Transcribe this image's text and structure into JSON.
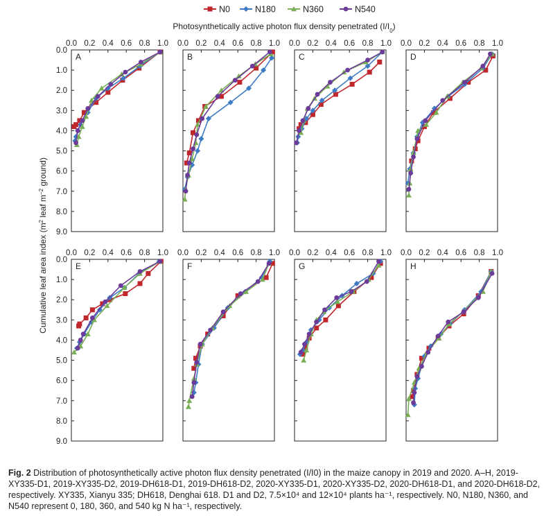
{
  "series_colors": {
    "N0": "#c0272d",
    "N180": "#3d7cc4",
    "N360": "#79ae55",
    "N540": "#6c3b9a"
  },
  "chart_data": {
    "type": "line",
    "xlabel": "Photosynthetically active photon flux density penetrated (I/I",
    "xlabel_sub": "0",
    "xlabel_end": ")",
    "ylabel_part1": "Cumulative leaf area index (m",
    "ylabel_sup1": "2",
    "ylabel_part2": " leaf m",
    "ylabel_sup2": "−2",
    "ylabel_part3": " ground)",
    "xlim": [
      0,
      1.0
    ],
    "ylim": [
      0,
      9.0
    ],
    "y_inverted": true,
    "x_ticks": [
      "0.0",
      "0.2",
      "0.4",
      "0.6",
      "0.8",
      "1.0"
    ],
    "y_ticks": [
      "0.0",
      "1.0",
      "2.0",
      "3.0",
      "4.0",
      "5.0",
      "6.0",
      "7.0",
      "8.0",
      "9.0"
    ],
    "legend": [
      "N0",
      "N180",
      "N360",
      "N540"
    ],
    "legend_position": "top-center",
    "panels": [
      {
        "label": "A",
        "series": [
          {
            "name": "N0",
            "x": [
              0.97,
              0.74,
              0.56,
              0.4,
              0.27,
              0.14,
              0.09,
              0.05,
              0.03
            ],
            "y": [
              0.1,
              0.9,
              1.5,
              2.1,
              2.6,
              3.1,
              3.5,
              3.7,
              3.8
            ]
          },
          {
            "name": "N180",
            "x": [
              0.97,
              0.75,
              0.57,
              0.4,
              0.27,
              0.18,
              0.1,
              0.07,
              0.05,
              0.04
            ],
            "y": [
              0.1,
              0.8,
              1.4,
              1.9,
              2.4,
              3.1,
              3.7,
              4.0,
              4.3,
              4.5
            ]
          },
          {
            "name": "N360",
            "x": [
              0.97,
              0.76,
              0.55,
              0.33,
              0.22,
              0.16,
              0.12,
              0.08,
              0.06
            ],
            "y": [
              0.1,
              0.7,
              1.2,
              1.9,
              2.5,
              3.3,
              3.8,
              4.3,
              4.7
            ]
          },
          {
            "name": "N540",
            "x": [
              0.97,
              0.76,
              0.59,
              0.43,
              0.29,
              0.18,
              0.12,
              0.07,
              0.05
            ],
            "y": [
              0.1,
              0.6,
              1.1,
              1.7,
              2.3,
              2.9,
              3.5,
              4.0,
              4.6
            ]
          }
        ]
      },
      {
        "label": "B",
        "series": [
          {
            "name": "N0",
            "x": [
              0.98,
              0.8,
              0.62,
              0.42,
              0.24,
              0.17,
              0.11,
              0.07,
              0.04
            ],
            "y": [
              0.1,
              0.9,
              1.6,
              2.3,
              2.8,
              3.5,
              4.1,
              5.1,
              5.6
            ]
          },
          {
            "name": "N180",
            "x": [
              0.97,
              0.88,
              0.72,
              0.52,
              0.28,
              0.2,
              0.16,
              0.1,
              0.05,
              0.02
            ],
            "y": [
              0.4,
              1.0,
              1.9,
              2.6,
              3.4,
              4.4,
              5.0,
              5.7,
              6.3,
              6.9
            ]
          },
          {
            "name": "N360",
            "x": [
              0.96,
              0.79,
              0.61,
              0.42,
              0.25,
              0.16,
              0.14,
              0.1,
              0.06,
              0.03,
              0.02
            ],
            "y": [
              0.2,
              0.7,
              1.3,
              2.0,
              2.8,
              3.7,
              4.6,
              5.4,
              6.2,
              6.9,
              7.4
            ]
          },
          {
            "name": "N540",
            "x": [
              0.95,
              0.76,
              0.57,
              0.38,
              0.21,
              0.15,
              0.11,
              0.07,
              0.05,
              0.03
            ],
            "y": [
              0.1,
              0.8,
              1.5,
              2.3,
              3.4,
              4.2,
              4.9,
              5.6,
              6.2,
              7.0
            ]
          }
        ]
      },
      {
        "label": "C",
        "series": [
          {
            "name": "N0",
            "x": [
              0.93,
              0.82,
              0.63,
              0.45,
              0.29,
              0.2,
              0.12,
              0.07,
              0.05
            ],
            "y": [
              0.6,
              1.1,
              1.7,
              2.2,
              2.7,
              3.2,
              3.6,
              3.7,
              3.9
            ]
          },
          {
            "name": "N180",
            "x": [
              0.96,
              0.8,
              0.61,
              0.44,
              0.3,
              0.2,
              0.13,
              0.08,
              0.04,
              0.03
            ],
            "y": [
              0.1,
              0.8,
              1.4,
              2.0,
              2.5,
              3.0,
              3.4,
              3.9,
              4.3,
              4.6
            ]
          },
          {
            "name": "N360",
            "x": [
              0.96,
              0.78,
              0.54,
              0.36,
              0.22,
              0.14,
              0.1,
              0.07
            ],
            "y": [
              0.1,
              0.6,
              1.1,
              1.8,
              2.4,
              2.9,
              3.5,
              4.1
            ]
          },
          {
            "name": "N540",
            "x": [
              0.96,
              0.8,
              0.58,
              0.39,
              0.25,
              0.15,
              0.09,
              0.05,
              0.02
            ],
            "y": [
              0.1,
              0.5,
              1.0,
              1.6,
              2.2,
              2.9,
              3.5,
              4.0,
              4.6
            ]
          }
        ]
      },
      {
        "label": "D",
        "series": [
          {
            "name": "N0",
            "x": [
              0.95,
              0.87,
              0.68,
              0.48,
              0.3,
              0.2,
              0.13,
              0.1,
              0.06
            ],
            "y": [
              0.3,
              1.0,
              1.6,
              2.4,
              3.1,
              3.8,
              4.5,
              4.9,
              5.5
            ]
          },
          {
            "name": "N180",
            "x": [
              0.94,
              0.84,
              0.64,
              0.46,
              0.31,
              0.18,
              0.12,
              0.08,
              0.04,
              0.02
            ],
            "y": [
              0.2,
              0.9,
              1.7,
              2.3,
              2.9,
              3.6,
              4.3,
              5.1,
              5.9,
              6.6
            ]
          },
          {
            "name": "N360",
            "x": [
              0.94,
              0.82,
              0.62,
              0.45,
              0.33,
              0.22,
              0.13,
              0.08,
              0.05,
              0.04,
              0.03
            ],
            "y": [
              0.2,
              0.9,
              1.6,
              2.3,
              3.1,
              3.7,
              4.0,
              5.1,
              5.9,
              6.6,
              7.2
            ]
          },
          {
            "name": "N540",
            "x": [
              0.92,
              0.84,
              0.64,
              0.4,
              0.21,
              0.12,
              0.08,
              0.05,
              0.03
            ],
            "y": [
              0.2,
              0.8,
              1.6,
              2.5,
              3.5,
              4.4,
              5.3,
              6.1,
              6.9
            ]
          }
        ]
      },
      {
        "label": "E",
        "series": [
          {
            "name": "N0",
            "x": [
              0.98,
              0.84,
              0.75,
              0.59,
              0.42,
              0.34,
              0.23,
              0.16,
              0.09,
              0.08
            ],
            "y": [
              0.1,
              0.7,
              1.2,
              1.7,
              2.0,
              2.2,
              2.5,
              2.9,
              3.2,
              3.3
            ]
          },
          {
            "name": "N180",
            "x": [
              0.96,
              0.74,
              0.58,
              0.42,
              0.31,
              0.22,
              0.14,
              0.09,
              0.06
            ],
            "y": [
              0.1,
              0.7,
              1.4,
              1.9,
              2.5,
              3.1,
              3.7,
              4.1,
              4.4
            ]
          },
          {
            "name": "N360",
            "x": [
              0.97,
              0.75,
              0.58,
              0.39,
              0.25,
              0.18,
              0.1,
              0.03
            ],
            "y": [
              0.1,
              0.7,
              1.4,
              2.3,
              3.0,
              3.7,
              4.3,
              4.6
            ]
          },
          {
            "name": "N540",
            "x": [
              0.97,
              0.75,
              0.54,
              0.37,
              0.23,
              0.13,
              0.1,
              0.07
            ],
            "y": [
              0.1,
              0.6,
              1.3,
              2.1,
              2.9,
              3.7,
              4.0,
              4.4
            ]
          }
        ]
      },
      {
        "label": "F",
        "series": [
          {
            "name": "N0",
            "x": [
              0.98,
              0.91,
              0.6,
              0.44,
              0.27,
              0.19,
              0.14,
              0.12
            ],
            "y": [
              0.2,
              0.9,
              1.8,
              2.8,
              3.7,
              4.3,
              4.9,
              5.4
            ]
          },
          {
            "name": "N180",
            "x": [
              0.95,
              0.86,
              0.68,
              0.49,
              0.34,
              0.21,
              0.17,
              0.14,
              0.12
            ],
            "y": [
              0.1,
              0.9,
              1.6,
              2.4,
              3.4,
              4.2,
              5.2,
              6.1,
              6.6
            ]
          },
          {
            "name": "N360",
            "x": [
              0.94,
              0.87,
              0.69,
              0.51,
              0.32,
              0.21,
              0.15,
              0.12,
              0.07,
              0.06
            ],
            "y": [
              0.2,
              1.0,
              1.6,
              2.3,
              3.4,
              4.2,
              5.2,
              5.9,
              7.0,
              7.3
            ]
          },
          {
            "name": "N540",
            "x": [
              0.94,
              0.82,
              0.63,
              0.44,
              0.3,
              0.19,
              0.15,
              0.12,
              0.1
            ],
            "y": [
              0.2,
              1.1,
              1.7,
              2.6,
              3.5,
              4.2,
              5.1,
              6.1,
              6.8
            ]
          }
        ]
      },
      {
        "label": "G",
        "series": [
          {
            "name": "N0",
            "x": [
              0.94,
              0.84,
              0.65,
              0.48,
              0.34,
              0.24,
              0.16,
              0.12,
              0.09
            ],
            "y": [
              0.2,
              0.9,
              1.6,
              2.3,
              3.0,
              3.4,
              3.9,
              4.4,
              4.7
            ]
          },
          {
            "name": "N180",
            "x": [
              0.94,
              0.86,
              0.68,
              0.52,
              0.38,
              0.27,
              0.18,
              0.13,
              0.09,
              0.06
            ],
            "y": [
              0.1,
              0.7,
              1.2,
              1.8,
              2.4,
              3.0,
              3.5,
              4.1,
              4.5,
              4.7
            ]
          },
          {
            "name": "N360",
            "x": [
              0.92,
              0.81,
              0.64,
              0.47,
              0.32,
              0.24,
              0.18,
              0.13,
              0.1
            ],
            "y": [
              0.3,
              1.0,
              1.6,
              2.1,
              2.6,
              3.0,
              3.7,
              4.5,
              5.0
            ]
          },
          {
            "name": "N540",
            "x": [
              0.92,
              0.79,
              0.62,
              0.46,
              0.33,
              0.24,
              0.16,
              0.11,
              0.07
            ],
            "y": [
              0.1,
              1.1,
              1.6,
              1.9,
              2.5,
              3.1,
              3.7,
              4.2,
              4.6
            ]
          }
        ]
      },
      {
        "label": "H",
        "series": [
          {
            "name": "N0",
            "x": [
              0.93,
              0.79,
              0.63,
              0.47,
              0.35,
              0.25,
              0.17,
              0.12,
              0.08,
              0.07
            ],
            "y": [
              0.6,
              1.8,
              2.7,
              3.3,
              3.9,
              4.4,
              4.9,
              5.7,
              6.5,
              6.8
            ]
          },
          {
            "name": "N180",
            "x": [
              0.93,
              0.82,
              0.64,
              0.48,
              0.38,
              0.27,
              0.2,
              0.13,
              0.1,
              0.09
            ],
            "y": [
              0.6,
              1.6,
              2.5,
              3.2,
              3.7,
              4.3,
              4.8,
              5.9,
              6.4,
              7.2
            ]
          },
          {
            "name": "N360",
            "x": [
              0.93,
              0.84,
              0.62,
              0.47,
              0.36,
              0.23,
              0.14,
              0.09,
              0.03,
              0.02
            ],
            "y": [
              0.6,
              1.6,
              2.6,
              3.2,
              3.9,
              4.6,
              5.4,
              6.1,
              6.9,
              7.7
            ]
          },
          {
            "name": "N540",
            "x": [
              0.94,
              0.79,
              0.63,
              0.46,
              0.35,
              0.24,
              0.17,
              0.12,
              0.09,
              0.08
            ],
            "y": [
              0.7,
              1.9,
              2.6,
              3.1,
              3.8,
              4.6,
              5.3,
              5.8,
              6.6,
              7.1
            ]
          }
        ]
      }
    ]
  },
  "caption": {
    "fig": "Fig. 2",
    "text": "  Distribution of photosynthetically active photon flux density penetrated (I/I0) in the maize canopy in 2019 and 2020.  A–H, 2019-XY335-D1, 2019-XY335-D2, 2019-DH618-D1, 2019-DH618-D2, 2020-XY335-D1, 2020-XY335-D2, 2020-DH618-D1, and 2020-DH618-D2, respectively.  XY335, Xianyu 335; DH618, Denghai 618.  D1 and D2, 7.5×10⁴ and 12×10⁴ plants ha⁻¹, respectively.  N0, N180, N360, and N540 represent 0, 180, 360, and 540 kg N ha⁻¹, respectively."
  }
}
